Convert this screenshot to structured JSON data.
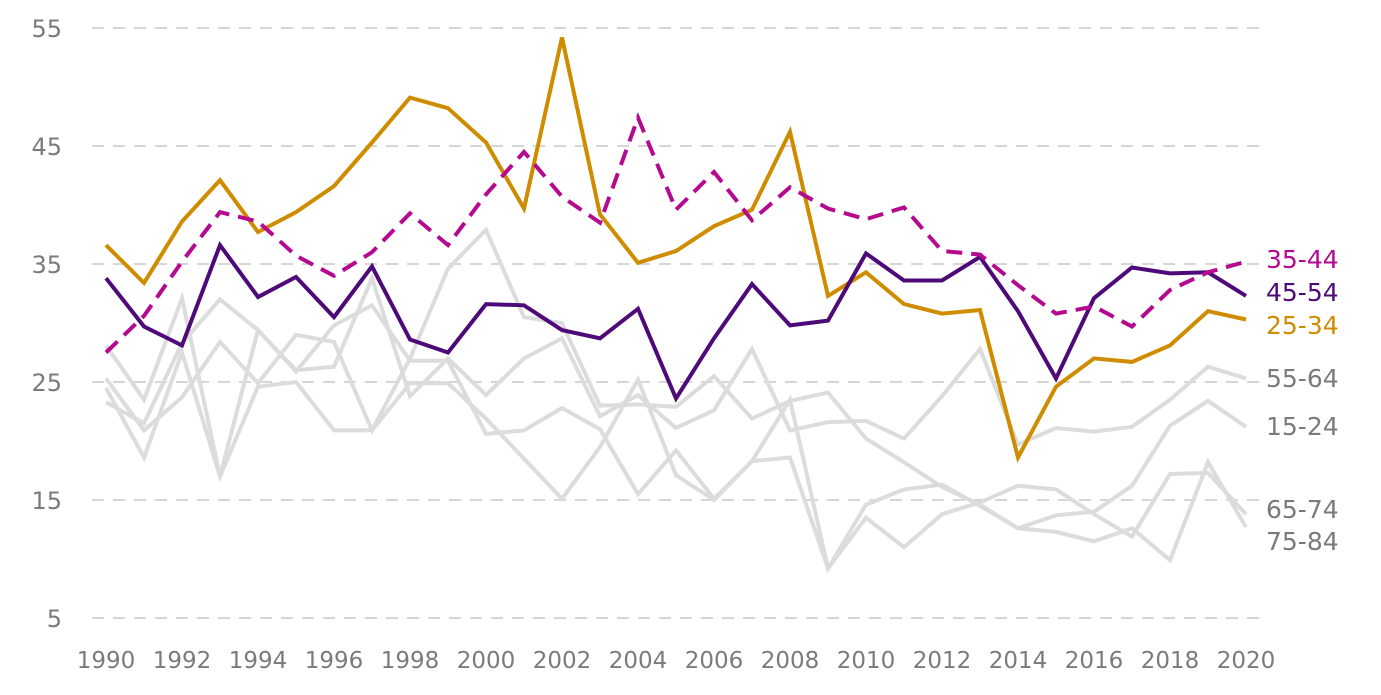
{
  "chart_data": {
    "type": "line",
    "title": "",
    "xlabel": "",
    "ylabel": "",
    "ylim": [
      5,
      55
    ],
    "yticks": [
      "5",
      "15",
      "25",
      "35",
      "45",
      "55"
    ],
    "xticks": [
      "1990",
      "1992",
      "1994",
      "1996",
      "1998",
      "2000",
      "2002",
      "2004",
      "2006",
      "2008",
      "2010",
      "2012",
      "2014",
      "2016",
      "2018",
      "2020"
    ],
    "grid": "horizontal dashed",
    "legend": "direct labels at right end of lines",
    "x": [
      1990,
      1991,
      1992,
      1993,
      1994,
      1995,
      1996,
      1997,
      1998,
      1999,
      2000,
      2001,
      2002,
      2003,
      2004,
      2005,
      2006,
      2007,
      2008,
      2009,
      2010,
      2011,
      2012,
      2013,
      2014,
      2015,
      2016,
      2017,
      2018,
      2019,
      2020
    ],
    "series": [
      {
        "name": "55-64",
        "color": "#dcdcdc",
        "text_color": "#7b7b7b",
        "dashed": false,
        "values": [
          28.1,
          23.5,
          32.1,
          17.0,
          29.4,
          26.0,
          26.3,
          33.8,
          23.8,
          27.0,
          23.9,
          27.0,
          28.7,
          22.1,
          23.9,
          21.1,
          22.6,
          27.8,
          20.9,
          21.6,
          21.7,
          20.2,
          23.8,
          27.8,
          19.7,
          21.1,
          20.8,
          21.2,
          23.5,
          26.3,
          25.3
        ]
      },
      {
        "name": "15-24",
        "color": "#dcdcdc",
        "text_color": "#7b7b7b",
        "dashed": false,
        "values": [
          25.3,
          20.9,
          23.7,
          28.4,
          24.9,
          29.0,
          28.4,
          20.9,
          27.0,
          34.6,
          37.9,
          30.5,
          30.0,
          23.0,
          23.1,
          22.9,
          25.5,
          21.9,
          23.4,
          24.1,
          20.2,
          18.2,
          16.1,
          14.6,
          12.6,
          13.7,
          14.0,
          16.2,
          21.3,
          23.4,
          21.2
        ]
      },
      {
        "name": "65-74",
        "color": "#dcdcdc",
        "text_color": "#7b7b7b",
        "dashed": false,
        "values": [
          24.5,
          18.6,
          27.5,
          17.0,
          24.6,
          25.0,
          20.9,
          20.9,
          24.9,
          24.9,
          21.9,
          18.5,
          15.1,
          19.5,
          25.2,
          17.1,
          15.0,
          18.3,
          23.5,
          9.2,
          13.5,
          11.0,
          13.8,
          14.8,
          16.2,
          15.9,
          13.8,
          11.9,
          17.2,
          17.3,
          13.8
        ]
      },
      {
        "name": "75-84",
        "color": "#dcdcdc",
        "text_color": "#7b7b7b",
        "dashed": false,
        "values": [
          23.3,
          21.5,
          28.3,
          32.0,
          29.4,
          25.9,
          29.8,
          31.5,
          26.8,
          26.8,
          20.6,
          20.9,
          22.8,
          21.0,
          15.5,
          19.2,
          15.1,
          18.3,
          18.6,
          9.2,
          14.6,
          15.9,
          16.3,
          14.5,
          12.6,
          12.3,
          11.5,
          12.6,
          9.9,
          18.2,
          12.7
        ]
      },
      {
        "name": "25-34",
        "color": "#cf8c00",
        "text_color": "#cf8c00",
        "dashed": false,
        "values": [
          36.6,
          33.4,
          38.6,
          42.1,
          37.7,
          39.4,
          41.6,
          45.3,
          49.1,
          48.2,
          45.3,
          39.7,
          54.2,
          39.2,
          35.1,
          36.1,
          38.2,
          39.6,
          46.2,
          32.3,
          34.3,
          31.6,
          30.8,
          31.1,
          18.6,
          24.6,
          27.0,
          26.7,
          28.1,
          31.0,
          30.3
        ]
      },
      {
        "name": "45-54",
        "color": "#4f0a7a",
        "text_color": "#4f0a7a",
        "dashed": false,
        "values": [
          33.8,
          29.7,
          28.1,
          36.6,
          32.2,
          33.9,
          30.5,
          34.8,
          28.6,
          27.5,
          31.6,
          31.5,
          29.4,
          28.7,
          31.2,
          23.6,
          28.7,
          33.3,
          29.8,
          30.2,
          35.9,
          33.6,
          33.6,
          35.6,
          31.0,
          25.3,
          32.1,
          34.7,
          34.2,
          34.3,
          32.3
        ]
      },
      {
        "name": "35-44",
        "color": "#b5098f",
        "text_color": "#b5098f",
        "dashed": true,
        "values": [
          27.5,
          30.6,
          35.2,
          39.4,
          38.6,
          35.7,
          34.0,
          36.0,
          39.3,
          36.6,
          40.9,
          44.5,
          40.7,
          38.5,
          47.4,
          39.6,
          42.8,
          38.7,
          41.5,
          39.7,
          38.8,
          39.8,
          36.1,
          35.8,
          33.2,
          30.8,
          31.4,
          29.7,
          32.8,
          34.3,
          35.2
        ]
      }
    ]
  }
}
